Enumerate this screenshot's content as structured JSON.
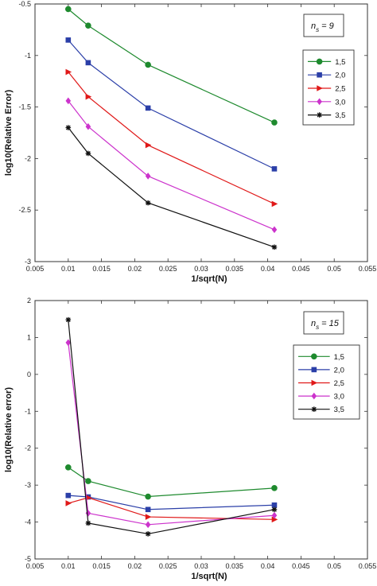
{
  "chart_data": [
    {
      "type": "line",
      "annotation": {
        "base": "n",
        "sub": "s",
        "rest": " = 9"
      },
      "xlabel": "1/sqrt(N)",
      "ylabel": "log10(Relative Error)",
      "xlim": [
        0.005,
        0.055
      ],
      "ylim": [
        -3,
        -0.5
      ],
      "xticks": [
        "0.005",
        "0.01",
        "0.015",
        "0.02",
        "0.025",
        "0.03",
        "0.035",
        "0.04",
        "0.045",
        "0.05",
        "0.055"
      ],
      "yticks": [
        "-0.5",
        "-1",
        "-1.5",
        "-2",
        "-2.5",
        "-3"
      ],
      "x": [
        0.01,
        0.013,
        0.022,
        0.041
      ],
      "legend_position": "right",
      "series": [
        {
          "name": "1,5",
          "values": [
            -0.55,
            -0.71,
            -1.09,
            -1.65
          ],
          "color": "#1e8a2e",
          "marker": "circle"
        },
        {
          "name": "2,0",
          "values": [
            -0.85,
            -1.07,
            -1.51,
            -2.1
          ],
          "color": "#2b3fa8",
          "marker": "square"
        },
        {
          "name": "2,5",
          "values": [
            -1.16,
            -1.4,
            -1.87,
            -2.44
          ],
          "color": "#e01919",
          "marker": "triangle-right"
        },
        {
          "name": "3,0",
          "values": [
            -1.44,
            -1.69,
            -2.17,
            -2.69
          ],
          "color": "#cc33cc",
          "marker": "diamond"
        },
        {
          "name": "3,5",
          "values": [
            -1.7,
            -1.95,
            -2.43,
            -2.86
          ],
          "color": "#111111",
          "marker": "star"
        }
      ]
    },
    {
      "type": "line",
      "annotation": {
        "base": "n",
        "sub": "s",
        "rest": " = 15"
      },
      "xlabel": "1/sqrt(N)",
      "ylabel": "log10(Relative error)",
      "xlim": [
        0.005,
        0.055
      ],
      "ylim": [
        -5,
        2
      ],
      "xticks": [
        "0.005",
        "0.01",
        "0.015",
        "0.02",
        "0.025",
        "0.03",
        "0.035",
        "0.04",
        "0.045",
        "0.05",
        "0.055"
      ],
      "yticks": [
        "2",
        "1",
        "0",
        "-1",
        "-2",
        "-3",
        "-4",
        "-5"
      ],
      "x": [
        0.01,
        0.013,
        0.022,
        0.041
      ],
      "legend_position": "right",
      "series": [
        {
          "name": "1,5",
          "values": [
            -2.52,
            -2.89,
            -3.31,
            -3.08
          ],
          "color": "#1e8a2e",
          "marker": "circle"
        },
        {
          "name": "2,0",
          "values": [
            -3.28,
            -3.32,
            -3.66,
            -3.54
          ],
          "color": "#2b3fa8",
          "marker": "square"
        },
        {
          "name": "2,5",
          "values": [
            -3.49,
            -3.34,
            -3.86,
            -3.93
          ],
          "color": "#e01919",
          "marker": "triangle-right"
        },
        {
          "name": "3,0",
          "values": [
            0.86,
            -3.76,
            -4.07,
            -3.82
          ],
          "color": "#cc33cc",
          "marker": "diamond"
        },
        {
          "name": "3,5",
          "values": [
            1.48,
            -4.03,
            -4.32,
            -3.66
          ],
          "color": "#111111",
          "marker": "star"
        }
      ]
    }
  ]
}
